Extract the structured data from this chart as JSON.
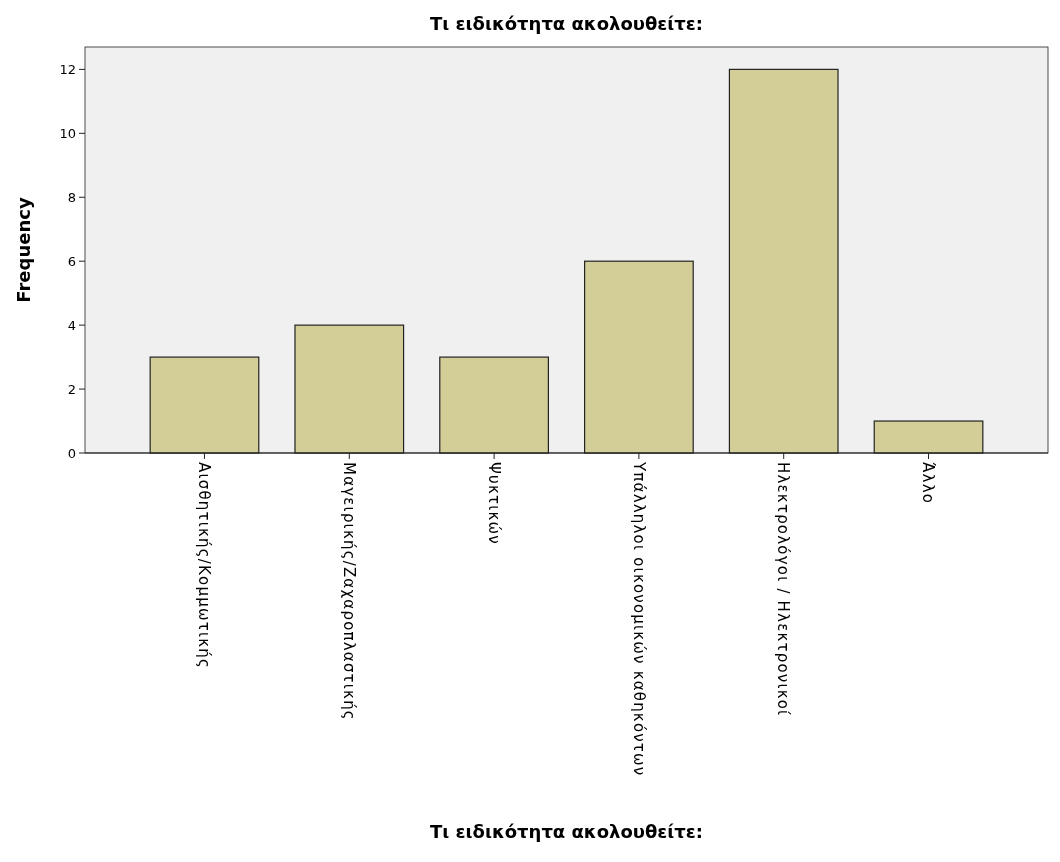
{
  "chart_data": {
    "type": "bar",
    "title": "Τι ειδικότητα ακολουθείτε:",
    "xlabel": "Τι ειδικότητα ακολουθείτε:",
    "ylabel": "Frequency",
    "categories": [
      "Αισθητικής/Κομμωτικής",
      "Μαγειρικής/Ζαχαροπλαστικής",
      "Ψυκτικών",
      "Υπάλληλοι οικονομικών καθηκόντων",
      "Ηλεκτρολόγοι / Ηλεκτρονικοί",
      "Άλλο"
    ],
    "values": [
      3,
      4,
      3,
      6,
      12,
      1
    ],
    "color": "#d3ce98",
    "ylim": [
      0,
      12.7
    ],
    "yticks": [
      0,
      2,
      4,
      6,
      8,
      10,
      12
    ],
    "grid": false
  }
}
